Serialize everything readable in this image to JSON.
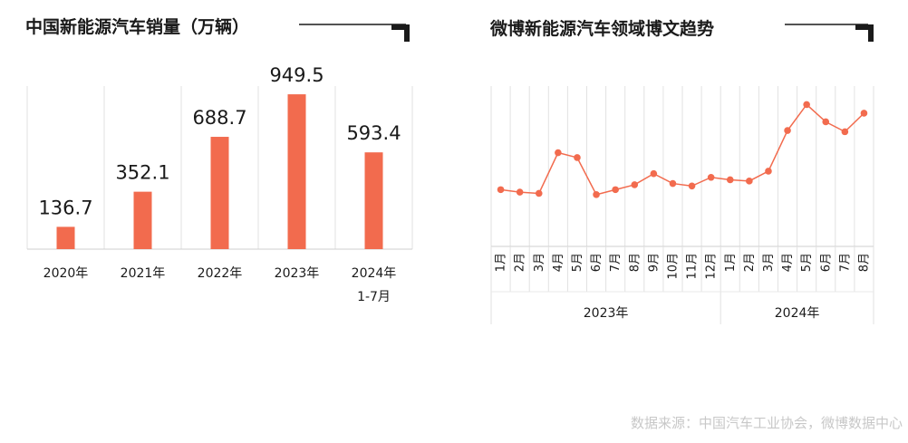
{
  "chart_data": [
    {
      "type": "bar",
      "title": "中国新能源汽车销量（万辆）",
      "categories": [
        "2020年",
        "2021年",
        "2022年",
        "2023年",
        "2024年\n1-7月"
      ],
      "values": [
        136.7,
        352.1,
        688.7,
        949.5,
        593.4
      ],
      "value_labels": [
        "136.7",
        "352.1",
        "688.7",
        "949.5",
        "593.4"
      ],
      "ylim": [
        0,
        1000
      ],
      "color": "#f26b4e",
      "grid": "vertical separators"
    },
    {
      "type": "line",
      "title": "微博新能源汽车领域博文趋势",
      "x": [
        "1月",
        "2月",
        "3月",
        "4月",
        "5月",
        "6月",
        "7月",
        "8月",
        "9月",
        "10月",
        "11月",
        "12月",
        "1月",
        "2月",
        "3月",
        "4月",
        "5月",
        "6月",
        "7月",
        "8月"
      ],
      "groups": [
        {
          "label": "2023年",
          "count": 12
        },
        {
          "label": "2024年",
          "count": 8
        }
      ],
      "values": [
        36,
        34,
        33,
        66,
        62,
        32,
        36,
        40,
        49,
        41,
        39,
        46,
        44,
        43,
        51,
        84,
        105,
        91,
        83,
        98
      ],
      "ylim": [
        -10,
        120
      ],
      "color": "#f26b4e",
      "yaxis_labels": "none",
      "grid": "vertical"
    }
  ],
  "source_text": "数据来源：中国汽车工业协会，微博数据中心"
}
